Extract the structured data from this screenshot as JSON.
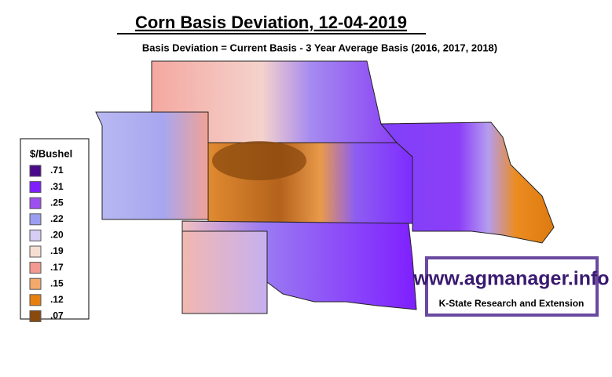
{
  "title": "Corn Basis Deviation, 12-04-2019",
  "subtitle": "Basis Deviation = Current Basis - 3 Year Average Basis (2016, 2017, 2018)",
  "legend": {
    "title": "$/Bushel",
    "items": [
      {
        "label": ".71",
        "color": "#4a0a8a"
      },
      {
        "label": ".31",
        "color": "#7f1fff"
      },
      {
        "label": ".25",
        "color": "#9e4ff0"
      },
      {
        "label": ".22",
        "color": "#9a9ef0"
      },
      {
        "label": ".20",
        "color": "#d6cdf4"
      },
      {
        "label": ".19",
        "color": "#f5ddd2"
      },
      {
        "label": ".17",
        "color": "#f29a90"
      },
      {
        "label": ".15",
        "color": "#f2aa6c"
      },
      {
        "label": ".12",
        "color": "#e7800f"
      },
      {
        "label": ".07",
        "color": "#8a4a0e"
      }
    ]
  },
  "watermark": {
    "url": "www.agmanager.info",
    "org": "K-State Research and Extension"
  }
}
